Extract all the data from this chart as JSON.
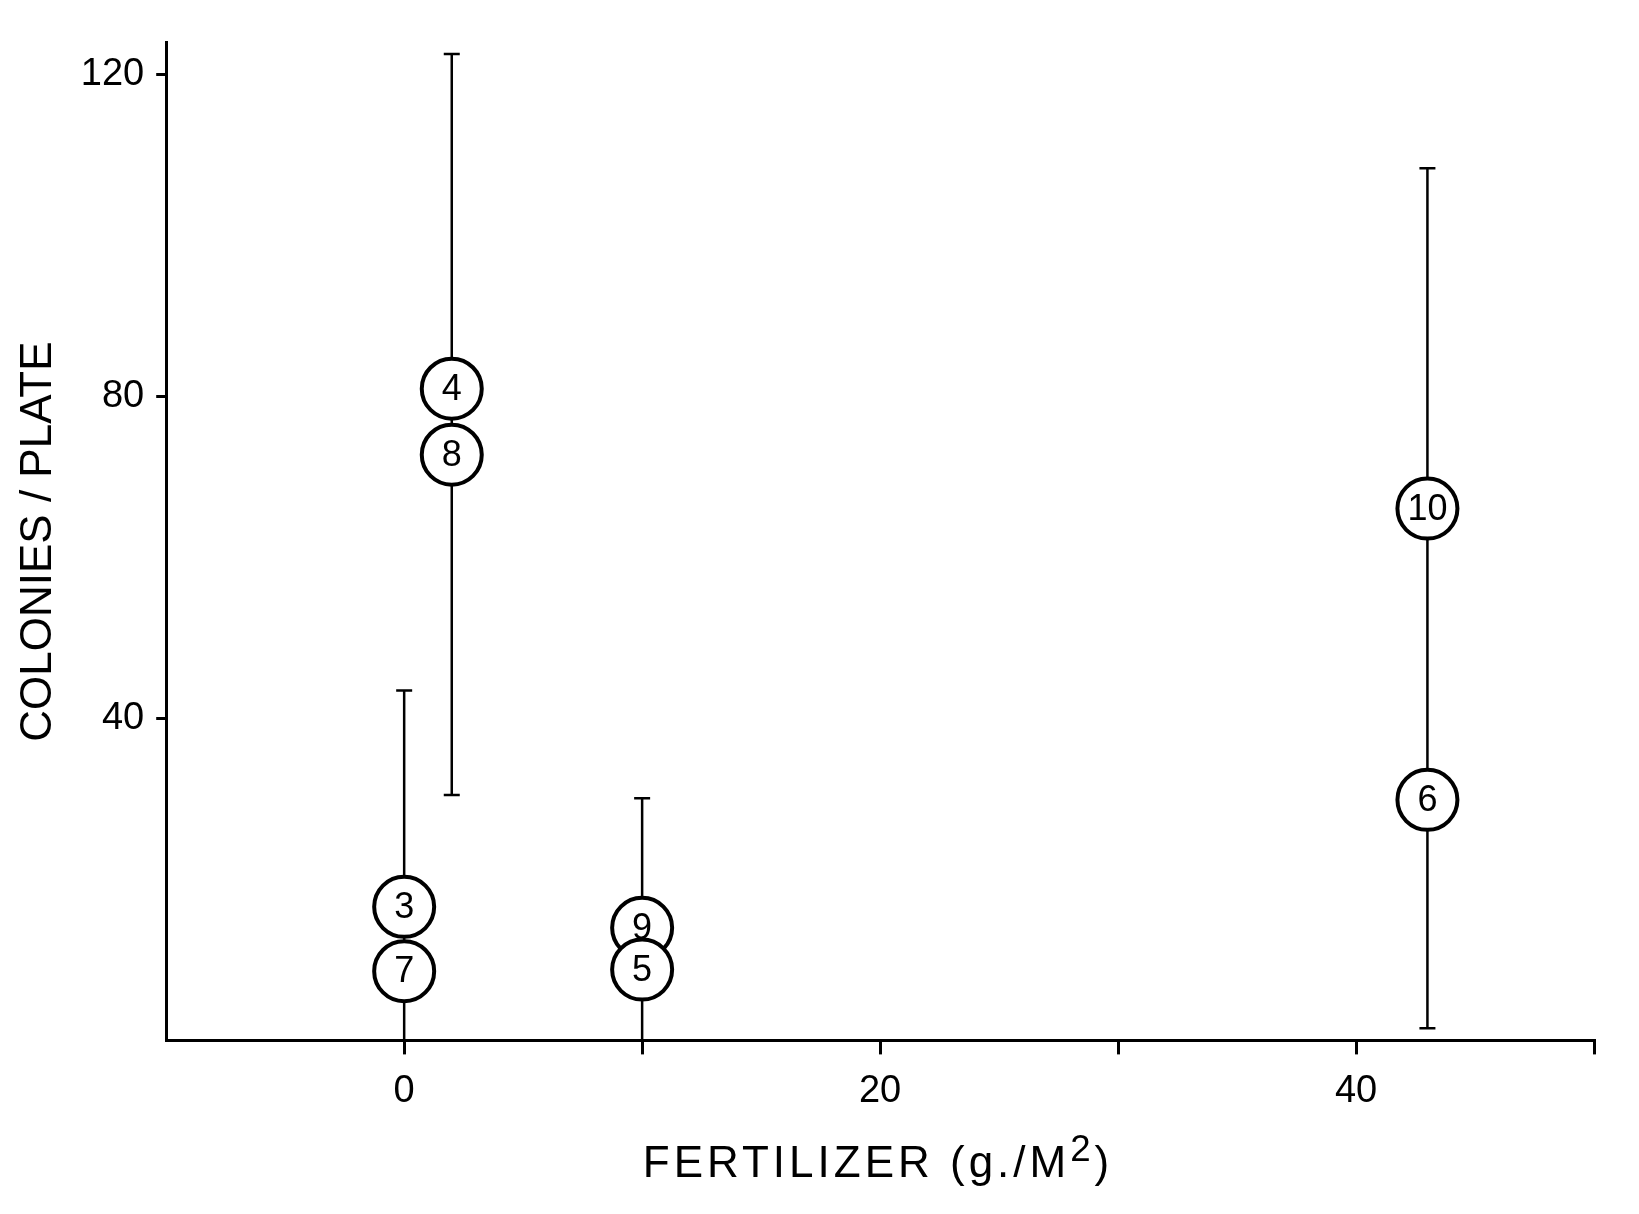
{
  "chart_data": {
    "type": "scatter",
    "xlabel": "FERTILIZER (g./M$^{2}$)",
    "ylabel": "COLONIES / PLATE",
    "x": [
      0,
      0,
      2,
      2,
      10,
      10,
      43,
      43
    ],
    "values": [
      16.6,
      8.6,
      81,
      72.8,
      14,
      8.8,
      66.1,
      29.9
    ],
    "annotations": [
      {
        "text": "3",
        "x": 0,
        "y": 16.6
      },
      {
        "text": "7",
        "x": 0,
        "y": 8.6
      },
      {
        "text": "4",
        "x": 2,
        "y": 81
      },
      {
        "text": "8",
        "x": 2,
        "y": 72.8
      },
      {
        "text": "9",
        "x": 10,
        "y": 14
      },
      {
        "text": "5",
        "x": 10,
        "y": 8.8
      },
      {
        "text": "10",
        "x": 43,
        "y": 66.1
      },
      {
        "text": "6",
        "x": 43,
        "y": 29.9
      }
    ],
    "errors": [
      [
        0,
        43.5
      ],
      null,
      [
        30.5,
        122.6
      ],
      null,
      [
        0,
        30.1
      ],
      null,
      [
        1.5,
        108.4
      ],
      null
    ],
    "color": "#000000",
    "marker": "circle",
    "grid": false,
    "legend": false,
    "xlim": [
      -10,
      50
    ],
    "xticks": [
      0,
      {
        "value": 10,
        "label": null
      },
      20,
      {
        "value": 30,
        "label": null
      },
      40,
      {
        "value": 50,
        "label": null
      }
    ],
    "ylim": [
      0,
      124
    ],
    "yticks": [
      40,
      80,
      120
    ]
  }
}
